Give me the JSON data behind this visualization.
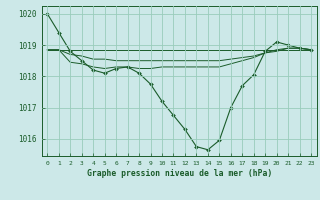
{
  "bg_color": "#cce8e8",
  "grid_color": "#99ccbb",
  "line_color": "#1a5c2a",
  "title": "Graphe pression niveau de la mer (hPa)",
  "xlabel_ticks": [
    0,
    1,
    2,
    3,
    4,
    5,
    6,
    7,
    8,
    9,
    10,
    11,
    12,
    13,
    14,
    15,
    16,
    17,
    18,
    19,
    20,
    21,
    22,
    23
  ],
  "yticks": [
    1016,
    1017,
    1018,
    1019,
    1020
  ],
  "ylim": [
    1015.45,
    1020.25
  ],
  "xlim": [
    -0.5,
    23.5
  ],
  "series": [
    [
      1020.0,
      1019.4,
      1018.8,
      1018.5,
      1018.2,
      1018.1,
      1018.25,
      1018.3,
      1018.1,
      1017.75,
      1017.2,
      1016.75,
      1016.3,
      1015.75,
      1015.65,
      1015.95,
      1017.0,
      1017.7,
      1018.05,
      1018.8,
      1019.1,
      1019.0,
      1018.9,
      1018.85
    ],
    [
      1018.85,
      1018.85,
      1018.85,
      1018.85,
      1018.85,
      1018.85,
      1018.85,
      1018.85,
      1018.85,
      1018.85,
      1018.85,
      1018.85,
      1018.85,
      1018.85,
      1018.85,
      1018.85,
      1018.85,
      1018.85,
      1018.85,
      1018.85,
      1018.85,
      1018.85,
      1018.85,
      1018.85
    ],
    [
      1018.85,
      1018.85,
      1018.7,
      1018.65,
      1018.55,
      1018.55,
      1018.5,
      1018.5,
      1018.5,
      1018.5,
      1018.5,
      1018.5,
      1018.5,
      1018.5,
      1018.5,
      1018.5,
      1018.55,
      1018.6,
      1018.65,
      1018.75,
      1018.85,
      1018.9,
      1018.9,
      1018.85
    ],
    [
      1018.85,
      1018.85,
      1018.45,
      1018.4,
      1018.3,
      1018.25,
      1018.3,
      1018.3,
      1018.25,
      1018.25,
      1018.3,
      1018.3,
      1018.3,
      1018.3,
      1018.3,
      1018.3,
      1018.4,
      1018.5,
      1018.6,
      1018.75,
      1018.8,
      1018.9,
      1018.9,
      1018.85
    ]
  ]
}
